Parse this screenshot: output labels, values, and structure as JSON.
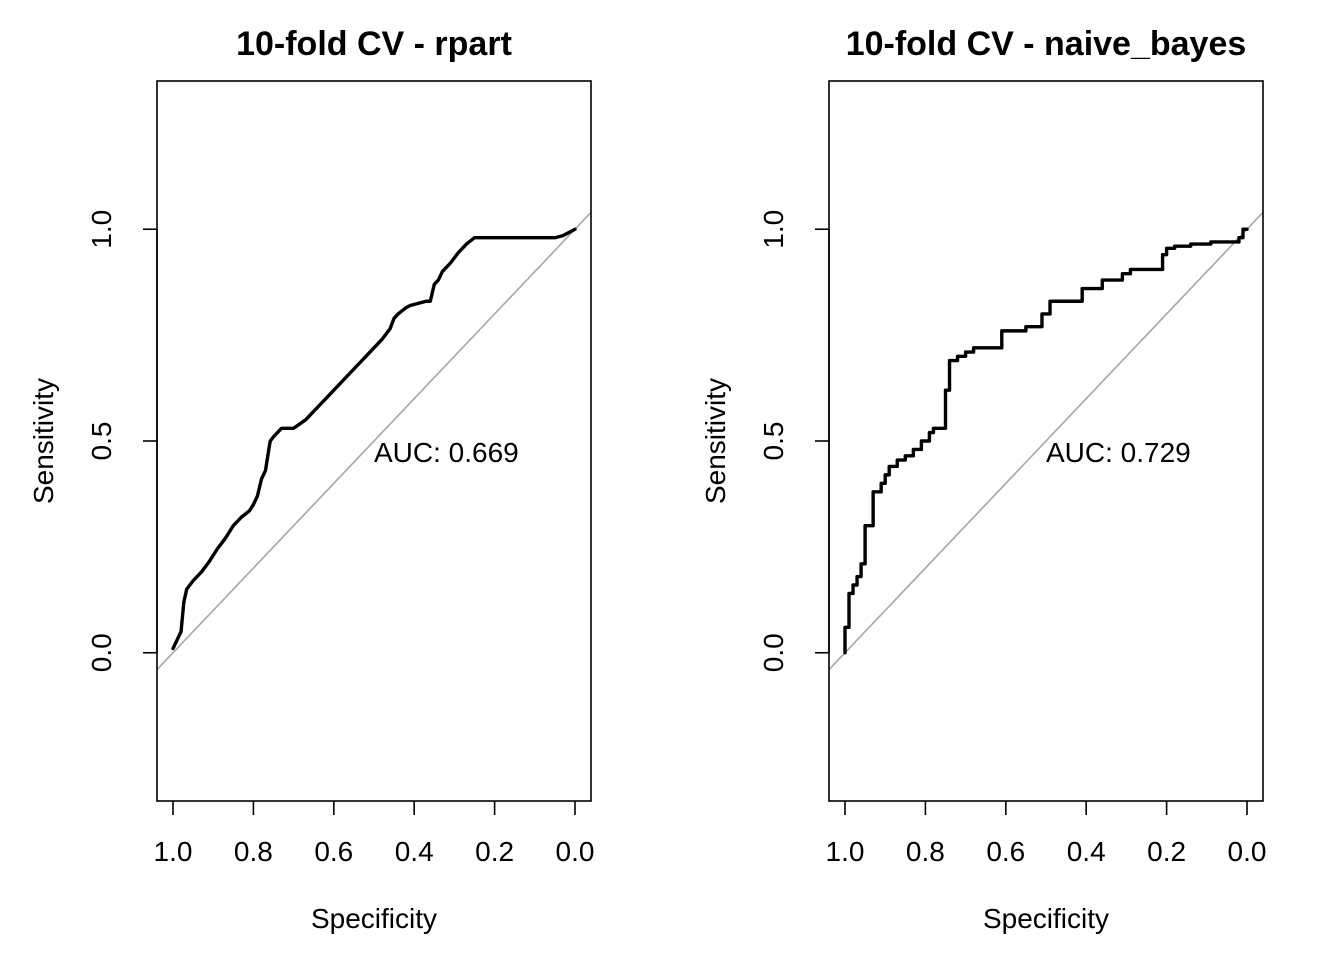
{
  "chart_data": [
    {
      "type": "line",
      "title": "10-fold CV - rpart",
      "xlabel": "Specificity",
      "ylabel": "Sensitivity",
      "xlim": [
        1.0,
        0.0
      ],
      "ylim": [
        -0.35,
        1.35
      ],
      "x_reversed": true,
      "x_ticks": [
        "1.0",
        "0.8",
        "0.6",
        "0.4",
        "0.2",
        "0.0"
      ],
      "y_ticks": [
        "0.0",
        "0.5",
        "1.0"
      ],
      "grid": false,
      "reference_line": "diagonal",
      "annotation": "AUC: 0.669",
      "series": [
        {
          "x": [
            1.0,
            0.99,
            0.98,
            0.977,
            0.973,
            0.966,
            0.95,
            0.93,
            0.91,
            0.89,
            0.87,
            0.85,
            0.83,
            0.81,
            0.8,
            0.79,
            0.78,
            0.77,
            0.76,
            0.758,
            0.75,
            0.73,
            0.7,
            0.67,
            0.65,
            0.64,
            0.62,
            0.6,
            0.58,
            0.56,
            0.54,
            0.52,
            0.5,
            0.48,
            0.46,
            0.45,
            0.44,
            0.42,
            0.41,
            0.39,
            0.37,
            0.36,
            0.35,
            0.34,
            0.33,
            0.31,
            0.29,
            0.27,
            0.25,
            0.2,
            0.15,
            0.1,
            0.05,
            0.03,
            0.0
          ],
          "y": [
            0.01,
            0.03,
            0.05,
            0.08,
            0.12,
            0.15,
            0.17,
            0.19,
            0.215,
            0.245,
            0.27,
            0.3,
            0.32,
            0.335,
            0.35,
            0.37,
            0.41,
            0.43,
            0.49,
            0.5,
            0.51,
            0.53,
            0.53,
            0.55,
            0.57,
            0.58,
            0.6,
            0.62,
            0.64,
            0.66,
            0.68,
            0.7,
            0.72,
            0.74,
            0.765,
            0.79,
            0.8,
            0.815,
            0.82,
            0.825,
            0.83,
            0.83,
            0.87,
            0.88,
            0.9,
            0.92,
            0.945,
            0.965,
            0.98,
            0.98,
            0.98,
            0.98,
            0.98,
            0.985,
            1.0
          ]
        }
      ]
    },
    {
      "type": "line",
      "title": "10-fold CV - naive_bayes",
      "xlabel": "Specificity",
      "ylabel": "Sensitivity",
      "xlim": [
        1.0,
        0.0
      ],
      "ylim": [
        -0.35,
        1.35
      ],
      "x_reversed": true,
      "x_ticks": [
        "1.0",
        "0.8",
        "0.6",
        "0.4",
        "0.2",
        "0.0"
      ],
      "y_ticks": [
        "0.0",
        "0.5",
        "1.0"
      ],
      "grid": false,
      "reference_line": "diagonal",
      "annotation": "AUC: 0.729",
      "series": [
        {
          "x": [
            1.0,
            1.0,
            0.99,
            0.99,
            0.98,
            0.98,
            0.97,
            0.97,
            0.96,
            0.96,
            0.95,
            0.95,
            0.93,
            0.93,
            0.91,
            0.91,
            0.9,
            0.9,
            0.89,
            0.89,
            0.87,
            0.87,
            0.85,
            0.85,
            0.83,
            0.83,
            0.81,
            0.81,
            0.79,
            0.79,
            0.78,
            0.78,
            0.77,
            0.77,
            0.75,
            0.75,
            0.74,
            0.74,
            0.72,
            0.72,
            0.7,
            0.7,
            0.68,
            0.68,
            0.61,
            0.61,
            0.55,
            0.55,
            0.51,
            0.51,
            0.49,
            0.49,
            0.41,
            0.41,
            0.36,
            0.36,
            0.31,
            0.31,
            0.29,
            0.29,
            0.21,
            0.21,
            0.2,
            0.2,
            0.18,
            0.18,
            0.14,
            0.14,
            0.09,
            0.09,
            0.02,
            0.02,
            0.01,
            0.01,
            0.0
          ],
          "y": [
            0.0,
            0.06,
            0.06,
            0.14,
            0.14,
            0.16,
            0.16,
            0.18,
            0.18,
            0.21,
            0.21,
            0.3,
            0.3,
            0.38,
            0.38,
            0.4,
            0.4,
            0.42,
            0.42,
            0.44,
            0.44,
            0.455,
            0.455,
            0.465,
            0.465,
            0.48,
            0.48,
            0.5,
            0.5,
            0.52,
            0.52,
            0.53,
            0.53,
            0.53,
            0.53,
            0.62,
            0.62,
            0.69,
            0.69,
            0.7,
            0.7,
            0.71,
            0.71,
            0.72,
            0.72,
            0.76,
            0.76,
            0.77,
            0.77,
            0.8,
            0.8,
            0.83,
            0.83,
            0.86,
            0.86,
            0.88,
            0.88,
            0.895,
            0.895,
            0.905,
            0.905,
            0.94,
            0.94,
            0.955,
            0.955,
            0.96,
            0.96,
            0.965,
            0.965,
            0.97,
            0.97,
            0.98,
            0.98,
            1.0,
            1.0
          ]
        }
      ]
    }
  ]
}
